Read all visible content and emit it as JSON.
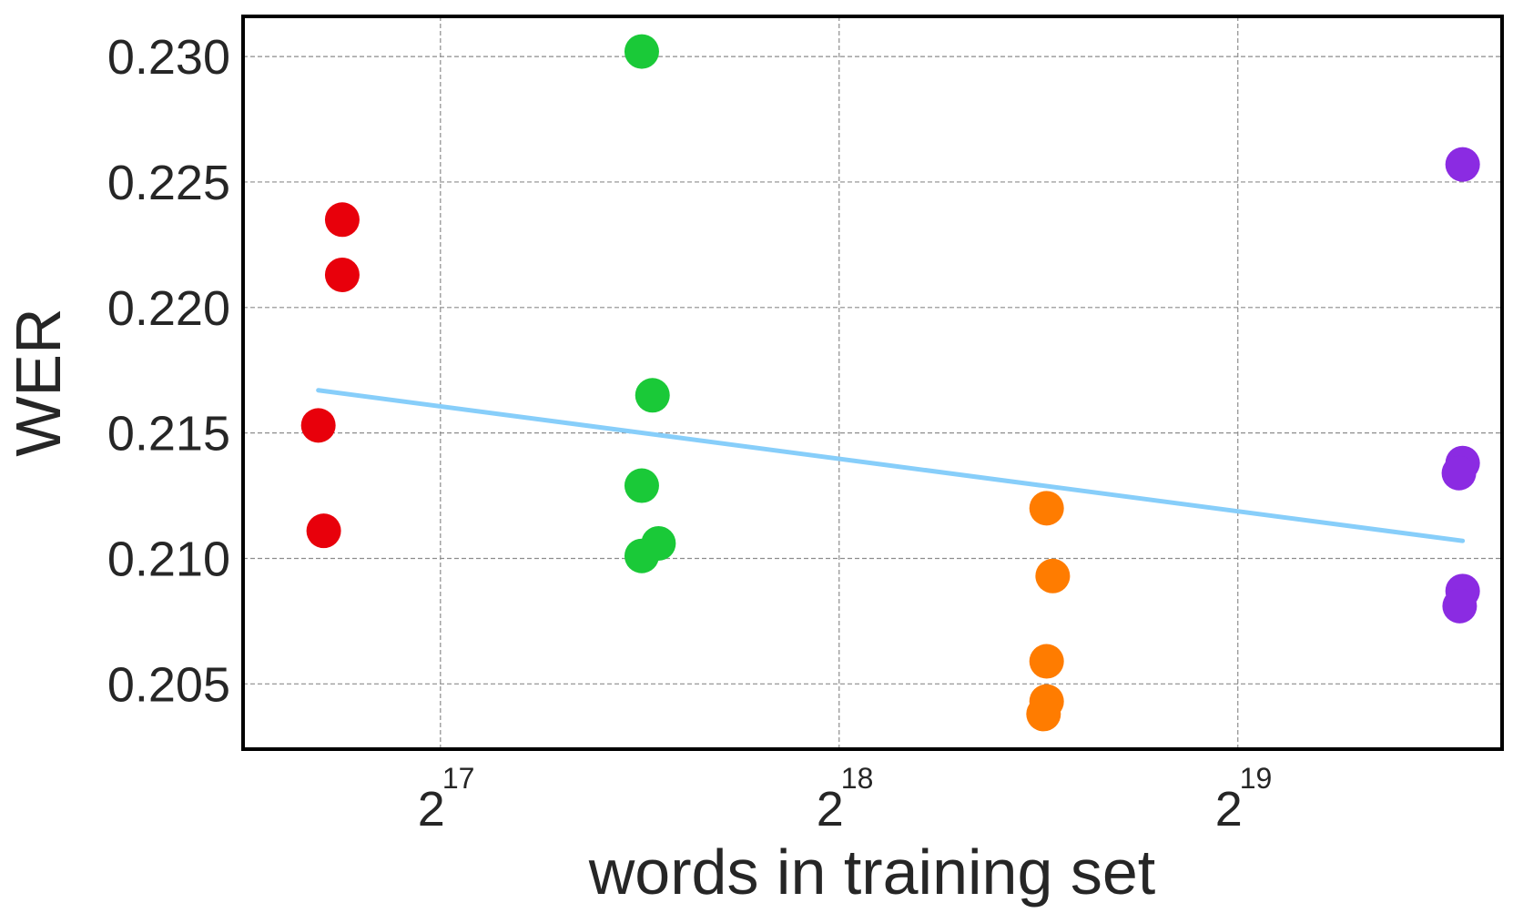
{
  "chart_data": {
    "type": "scatter",
    "title": "",
    "xlabel": "words in training set",
    "ylabel": "WER",
    "x_scale": "log2",
    "grid": true,
    "xlim": [
      93000,
      830000
    ],
    "ylim": [
      0.2024,
      0.2316
    ],
    "x_ticks": [
      {
        "value": 131072,
        "base": "2",
        "exp": "17"
      },
      {
        "value": 262144,
        "base": "2",
        "exp": "18"
      },
      {
        "value": 524288,
        "base": "2",
        "exp": "19"
      }
    ],
    "y_ticks": [
      {
        "value": 0.205,
        "label": "0.205"
      },
      {
        "value": 0.21,
        "label": "0.210"
      },
      {
        "value": 0.215,
        "label": "0.215"
      },
      {
        "value": 0.22,
        "label": "0.220"
      },
      {
        "value": 0.225,
        "label": "0.225"
      },
      {
        "value": 0.23,
        "label": "0.230"
      }
    ],
    "series": [
      {
        "color": "#e8000b",
        "points": [
          {
            "x": 106000,
            "y": 0.2153
          },
          {
            "x": 110500,
            "y": 0.2235
          },
          {
            "x": 110500,
            "y": 0.2213
          },
          {
            "x": 107000,
            "y": 0.2111
          }
        ]
      },
      {
        "color": "#1ac938",
        "points": [
          {
            "x": 186000,
            "y": 0.2302
          },
          {
            "x": 189500,
            "y": 0.2165
          },
          {
            "x": 186000,
            "y": 0.2129
          },
          {
            "x": 191500,
            "y": 0.2106
          },
          {
            "x": 186000,
            "y": 0.2101
          }
        ]
      },
      {
        "color": "#ff7c00",
        "points": [
          {
            "x": 376000,
            "y": 0.212
          },
          {
            "x": 380000,
            "y": 0.2093
          },
          {
            "x": 376000,
            "y": 0.2059
          },
          {
            "x": 376000,
            "y": 0.2043
          },
          {
            "x": 374000,
            "y": 0.2038
          }
        ]
      },
      {
        "color": "#8b2be2",
        "points": [
          {
            "x": 775000,
            "y": 0.2257
          },
          {
            "x": 775000,
            "y": 0.2138
          },
          {
            "x": 770000,
            "y": 0.2134
          },
          {
            "x": 775000,
            "y": 0.2087
          },
          {
            "x": 771000,
            "y": 0.2081
          }
        ]
      }
    ],
    "trend_line": {
      "color": "#87cefa",
      "x": [
        106000,
        775000
      ],
      "y": [
        0.2167,
        0.2107
      ]
    }
  }
}
